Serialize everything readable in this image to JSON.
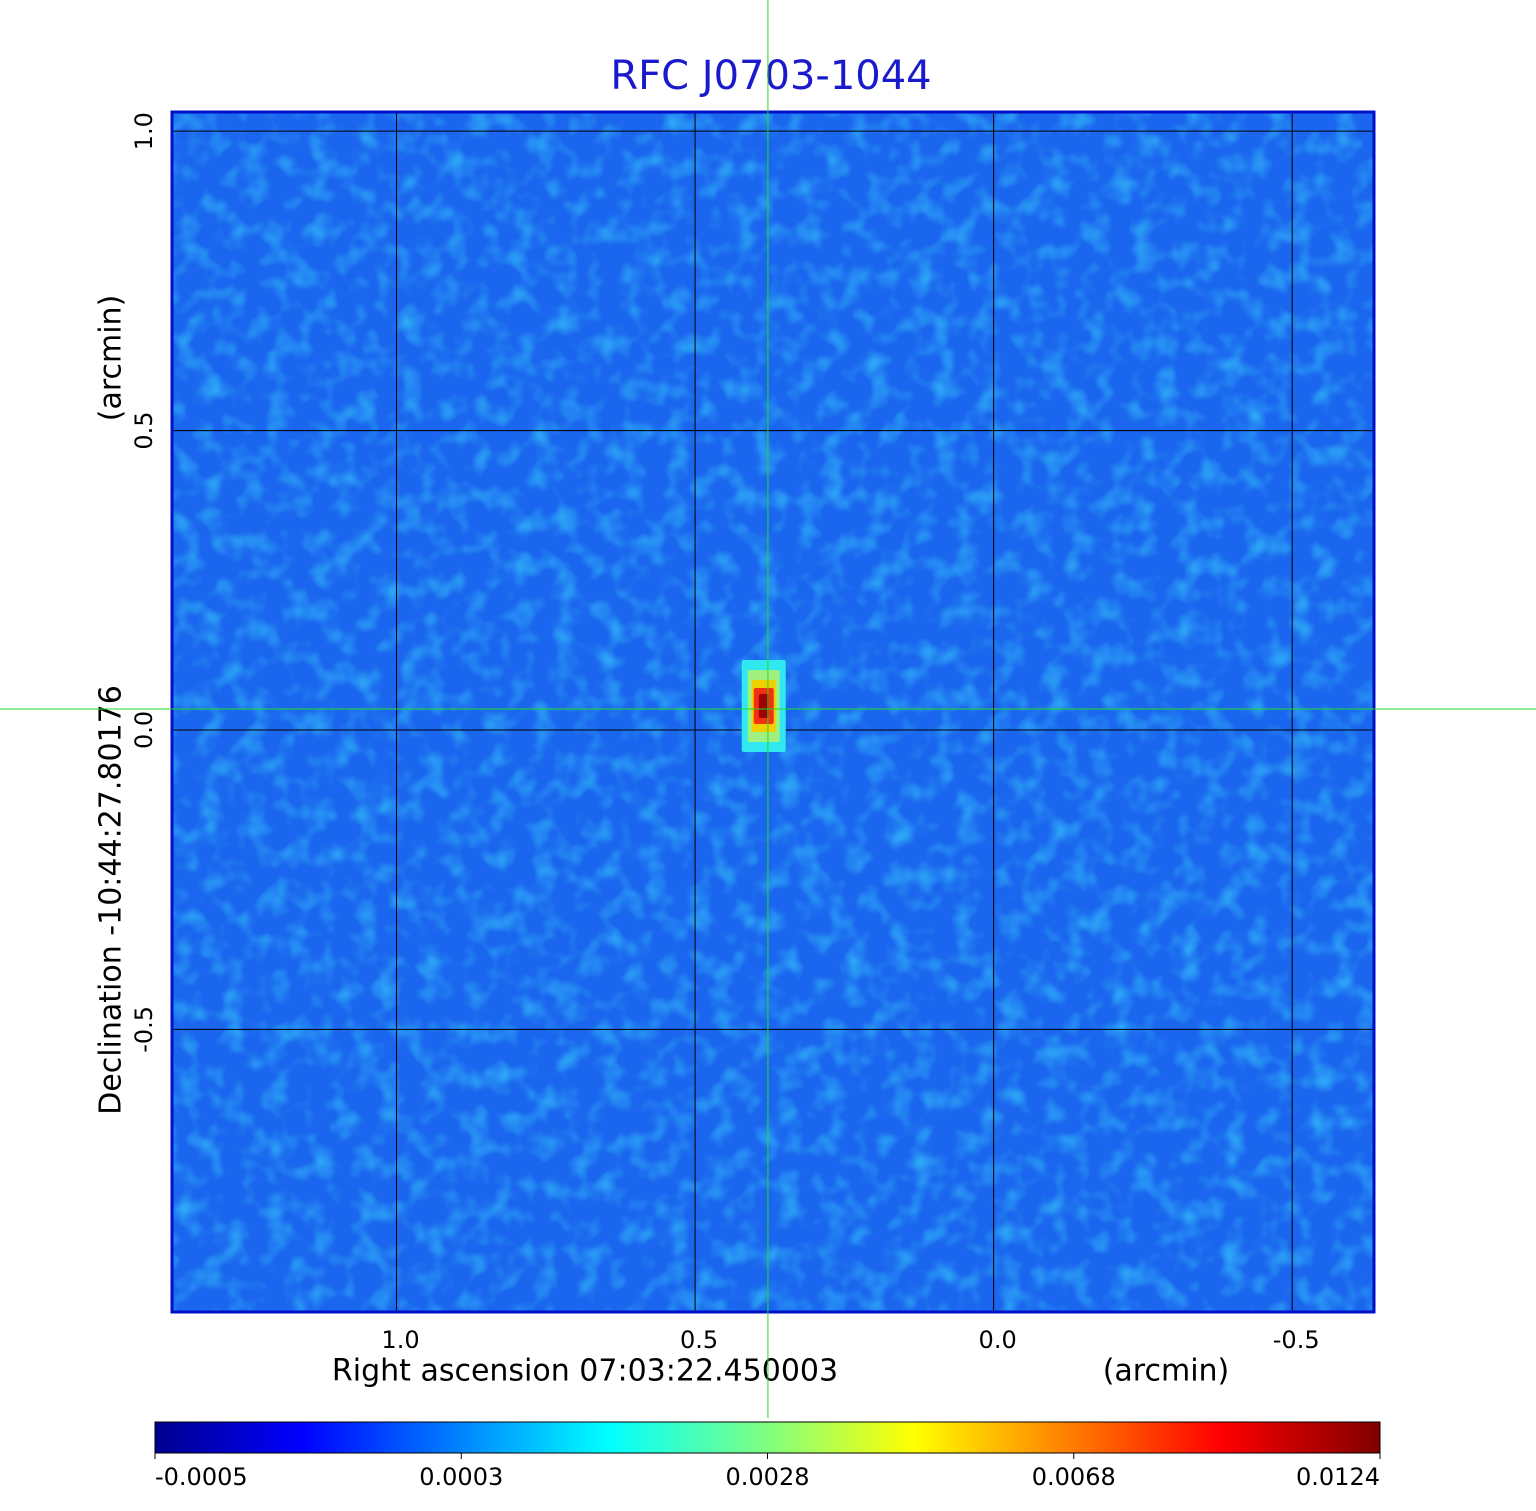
{
  "chart_data": {
    "type": "image",
    "title": "RFC J0703-1044",
    "x_label": "Right ascension  07:03:22.450003",
    "x_unit": "(arcmin)",
    "y_label": "Declination  -10:44:27.80176",
    "y_unit": "(arcmin)",
    "xlim": [
      1.376,
      -0.637
    ],
    "ylim": [
      -0.972,
      1.032
    ],
    "xticks": [
      {
        "value": 1,
        "label": "1.0"
      },
      0.5,
      {
        "value": 0,
        "label": "0.0"
      },
      -0.5
    ],
    "yticks": [
      -0.5,
      {
        "value": 0,
        "label": "0.0"
      },
      0.5,
      {
        "value": 1,
        "label": "1.0"
      }
    ],
    "grid": true,
    "colormap": "jet",
    "colorbar_ticks": [
      -0.0005,
      0.0003,
      0.0028,
      0.0068,
      0.0124
    ],
    "source": {
      "x": 0.385,
      "y": 0.04,
      "peak": 0.0124
    },
    "crosshair": {
      "x": 0.378,
      "y": 0.035,
      "color": "#22dd22"
    }
  }
}
